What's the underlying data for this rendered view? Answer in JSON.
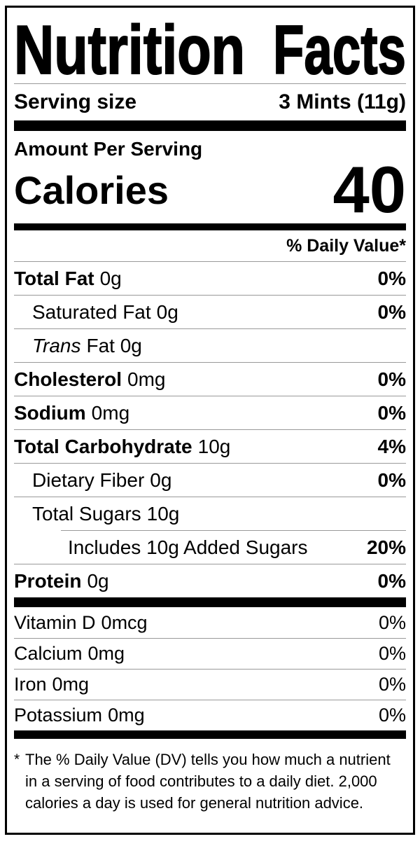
{
  "label": {
    "title": "Nutrition Facts",
    "title_words": [
      "Nutrition",
      "Facts"
    ],
    "serving": {
      "label": "Serving size",
      "value": "3 Mints (11g)"
    },
    "calories": {
      "header": "Amount Per Serving",
      "label": "Calories",
      "value": "40"
    },
    "daily_value_header": "% Daily Value*",
    "nutrients": [
      {
        "name": "Total Fat",
        "amount": "0g",
        "dv": "0%"
      },
      {
        "name": "Saturated Fat",
        "amount": "0g",
        "dv": "0%"
      },
      {
        "name": "Trans",
        "amount": "Fat 0g",
        "dv": ""
      },
      {
        "name": "Cholesterol",
        "amount": "0mg",
        "dv": "0%"
      },
      {
        "name": "Sodium",
        "amount": "0mg",
        "dv": "0%"
      },
      {
        "name": "Total Carbohydrate",
        "amount": "10g",
        "dv": "4%"
      },
      {
        "name": "Dietary Fiber",
        "amount": "0g",
        "dv": "0%"
      },
      {
        "name": "Total Sugars",
        "amount": "10g",
        "dv": ""
      },
      {
        "name": "Includes 10g Added Sugars",
        "amount": "",
        "dv": "20%"
      },
      {
        "name": "Protein",
        "amount": "0g",
        "dv": "0%"
      }
    ],
    "vitamins": [
      {
        "name": "Vitamin D",
        "amount": "0mcg",
        "dv": "0%"
      },
      {
        "name": "Calcium",
        "amount": "0mg",
        "dv": "0%"
      },
      {
        "name": "Iron",
        "amount": "0mg",
        "dv": "0%"
      },
      {
        "name": "Potassium",
        "amount": "0mg",
        "dv": "0%"
      }
    ],
    "footnote": {
      "marker": "*",
      "text": "The % Daily Value (DV) tells you how much a nutrient in a serving of food contributes to a daily diet. 2,000 calories a day is used for general nutrition advice."
    },
    "colors": {
      "text": "#000000",
      "background": "#ffffff",
      "hairline": "#999999"
    }
  }
}
